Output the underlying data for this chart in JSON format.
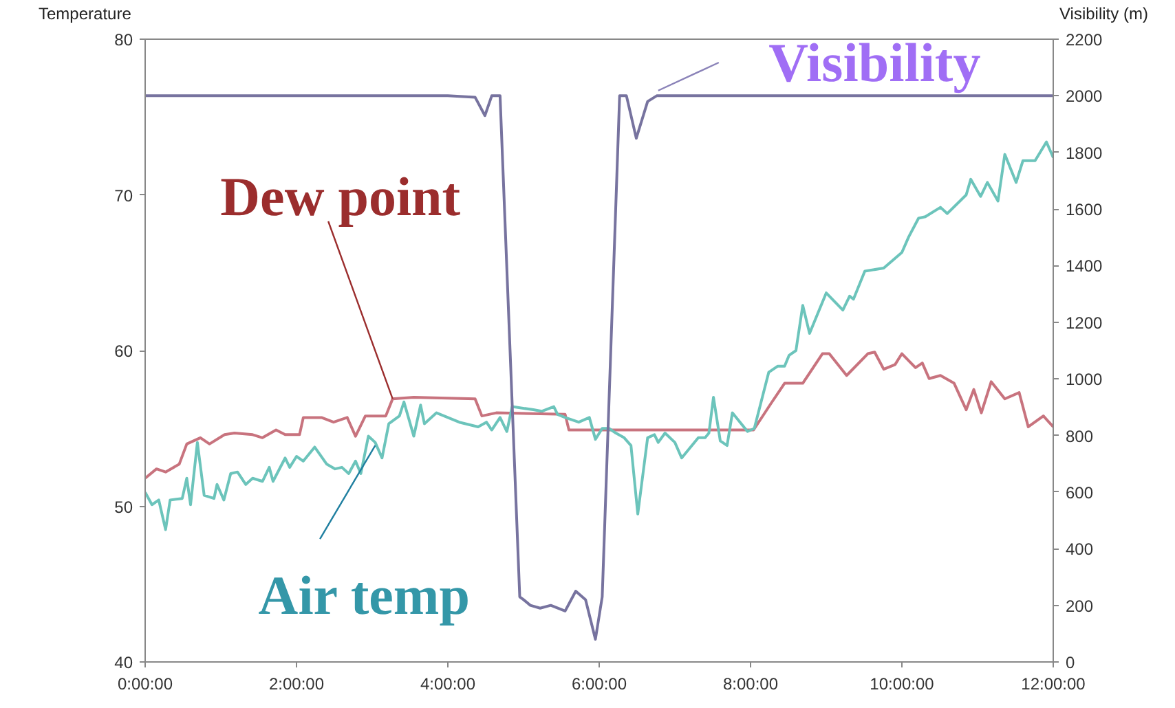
{
  "chart_data": {
    "type": "line",
    "ylabel": "Temperature",
    "y2label": "Visibility (m)",
    "xlim": [
      0,
      12
    ],
    "xticks": [
      {
        "value": 0,
        "label": "0:00:00"
      },
      {
        "value": 2,
        "label": "2:00:00"
      },
      {
        "value": 4,
        "label": "4:00:00"
      },
      {
        "value": 6,
        "label": "6:00:00"
      },
      {
        "value": 8,
        "label": "8:00:00"
      },
      {
        "value": 10,
        "label": "10:00:00"
      },
      {
        "value": 12,
        "label": "12:00:00"
      }
    ],
    "ylim": [
      40,
      80
    ],
    "yticks": [
      40,
      50,
      60,
      70,
      80
    ],
    "y2lim": [
      0,
      2200
    ],
    "y2ticks": [
      0,
      200,
      400,
      600,
      800,
      1000,
      1200,
      1400,
      1600,
      1800,
      2000,
      2200
    ],
    "grid": false,
    "marker": "none",
    "line_style": "solid",
    "series": [
      {
        "name": "Dew point",
        "color": "#c8737e",
        "x": [
          0,
          0.15,
          0.27,
          0.45,
          0.55,
          0.73,
          0.85,
          1.05,
          1.18,
          1.42,
          1.55,
          1.73,
          1.85,
          2.04,
          2.09,
          2.33,
          2.49,
          2.67,
          2.78,
          2.91,
          3.18,
          3.27,
          3.55,
          4.36,
          4.45,
          4.64,
          5.55,
          5.6,
          8.04,
          8.27,
          8.45,
          8.69,
          8.95,
          9.04,
          9.27,
          9.55,
          9.64,
          9.76,
          9.91,
          10.0,
          10.18,
          10.27,
          10.36,
          10.51,
          10.69,
          10.85,
          10.95,
          11.05,
          11.18,
          11.36,
          11.55,
          11.67,
          11.87,
          12.0
        ],
        "values": [
          51.8,
          52.4,
          52.2,
          52.7,
          54.0,
          54.4,
          54.0,
          54.6,
          54.7,
          54.6,
          54.4,
          54.9,
          54.6,
          54.6,
          55.7,
          55.7,
          55.4,
          55.7,
          54.5,
          55.8,
          55.8,
          56.9,
          57.0,
          56.9,
          55.8,
          56.0,
          55.9,
          54.9,
          54.9,
          56.6,
          57.9,
          57.9,
          59.8,
          59.8,
          58.4,
          59.8,
          59.9,
          58.8,
          59.1,
          59.8,
          58.9,
          59.2,
          58.2,
          58.4,
          57.9,
          56.2,
          57.5,
          56.0,
          58.0,
          56.9,
          57.3,
          55.1,
          55.8,
          55.1
        ]
      },
      {
        "name": "Air temp",
        "color": "#6cc4bb",
        "x": [
          0,
          0.09,
          0.18,
          0.27,
          0.33,
          0.49,
          0.55,
          0.6,
          0.69,
          0.78,
          0.91,
          0.95,
          1.04,
          1.13,
          1.22,
          1.33,
          1.42,
          1.55,
          1.64,
          1.69,
          1.85,
          1.91,
          2.0,
          2.09,
          2.24,
          2.4,
          2.51,
          2.6,
          2.69,
          2.78,
          2.85,
          2.95,
          3.04,
          3.13,
          3.22,
          3.36,
          3.42,
          3.55,
          3.64,
          3.69,
          3.85,
          4.15,
          4.4,
          4.51,
          4.58,
          4.69,
          4.78,
          4.85,
          5.13,
          5.24,
          5.4,
          5.45,
          5.55,
          5.73,
          5.87,
          5.95,
          6.04,
          6.13,
          6.22,
          6.33,
          6.42,
          6.51,
          6.64,
          6.73,
          6.78,
          6.87,
          7.0,
          7.09,
          7.31,
          7.4,
          7.45,
          7.51,
          7.6,
          7.69,
          7.76,
          7.96,
          8.05,
          8.24,
          8.36,
          8.45,
          8.51,
          8.6,
          8.69,
          8.78,
          9.0,
          9.22,
          9.31,
          9.36,
          9.51,
          9.76,
          10.0,
          10.09,
          10.22,
          10.31,
          10.51,
          10.6,
          10.85,
          10.91,
          11.04,
          11.13,
          11.27,
          11.36,
          11.51,
          11.6,
          11.76,
          11.91,
          12.0
        ],
        "values": [
          50.9,
          50.1,
          50.4,
          48.5,
          50.4,
          50.5,
          51.8,
          50.1,
          54.1,
          50.7,
          50.5,
          51.4,
          50.4,
          52.1,
          52.2,
          51.4,
          51.8,
          51.6,
          52.5,
          51.6,
          53.1,
          52.5,
          53.2,
          52.9,
          53.8,
          52.7,
          52.4,
          52.5,
          52.1,
          52.9,
          52.1,
          54.5,
          54.1,
          53.1,
          55.3,
          55.8,
          56.7,
          54.5,
          56.5,
          55.3,
          56.0,
          55.4,
          55.1,
          55.4,
          54.9,
          55.7,
          54.8,
          56.4,
          56.2,
          56.1,
          56.4,
          55.9,
          55.7,
          55.4,
          55.7,
          54.3,
          55.0,
          55.0,
          54.7,
          54.4,
          53.9,
          49.5,
          54.4,
          54.6,
          54.1,
          54.7,
          54.1,
          53.1,
          54.4,
          54.4,
          54.7,
          57.0,
          54.2,
          53.9,
          56.0,
          54.8,
          55.0,
          58.6,
          59.0,
          59.0,
          59.7,
          60.0,
          62.9,
          61.1,
          63.7,
          62.6,
          63.5,
          63.3,
          65.1,
          65.3,
          66.3,
          67.3,
          68.5,
          68.6,
          69.2,
          68.8,
          70.0,
          71.0,
          69.9,
          70.8,
          69.6,
          72.6,
          70.8,
          72.2,
          72.2,
          73.4,
          72.4
        ]
      },
      {
        "name": "Visibility",
        "color": "#77739f",
        "axis": "y2",
        "x": [
          0,
          4.0,
          4.36,
          4.49,
          4.58,
          4.69,
          4.95,
          5.0,
          5.09,
          5.22,
          5.36,
          5.55,
          5.69,
          5.82,
          5.95,
          6.04,
          6.27,
          6.36,
          6.49,
          6.64,
          6.76,
          12.0
        ],
        "values": [
          2000,
          2000,
          1995,
          1930,
          2000,
          2000,
          230,
          220,
          200,
          190,
          200,
          180,
          250,
          220,
          80,
          230,
          2000,
          2000,
          1850,
          1980,
          2000,
          2000
        ]
      }
    ]
  }
}
